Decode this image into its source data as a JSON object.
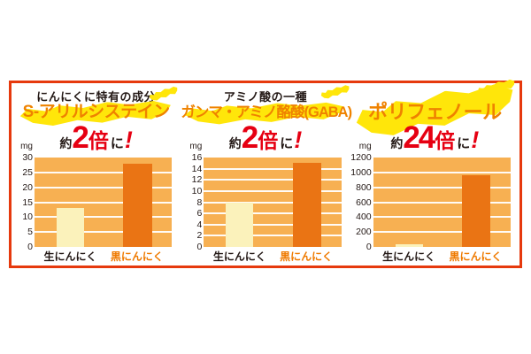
{
  "frame": {
    "border_color": "#e6390d",
    "background": "#ffffff"
  },
  "colors": {
    "plot_background": "#f7b052",
    "gridline": "#ffffff",
    "bar_raw_garlic": "#fbf2bb",
    "bar_black_garlic": "#ea7414",
    "title_orange": "#ef8200",
    "brush_yellow": "#ffe60a",
    "accent_red": "#e60012",
    "text_black": "#231815",
    "xlabel_orange": "#ef7a00"
  },
  "panels": [
    {
      "subtitle": "にんにくに特有の成分",
      "title": "S-アリルシステイン",
      "factor_prefix": "約",
      "factor_number": "2",
      "factor_counter": "倍",
      "factor_suffix": "に",
      "factor_bang": "!"
    },
    {
      "subtitle": "アミノ酸の一種",
      "title": "ガンマ・アミノ酪酸(GABA)",
      "factor_prefix": "約",
      "factor_number": "2",
      "factor_counter": "倍",
      "factor_suffix": "に",
      "factor_bang": "!"
    },
    {
      "subtitle": "",
      "title": "ポリフェノール",
      "factor_prefix": "約",
      "factor_number": "24",
      "factor_counter": "倍",
      "factor_suffix": "に",
      "factor_bang": "!"
    }
  ],
  "chart_data": [
    {
      "type": "bar",
      "title": "S-アリルシステイン",
      "annotation": "約2倍に!",
      "unit": "mg",
      "categories": [
        "生にんにく",
        "黒にんにく"
      ],
      "values": [
        13,
        28
      ],
      "ylim": [
        0,
        30
      ],
      "yticks": [
        0,
        5,
        10,
        15,
        20,
        25,
        30
      ],
      "grid": true,
      "legend": "none"
    },
    {
      "type": "bar",
      "title": "ガンマ・アミノ酪酸(GABA)",
      "annotation": "約2倍に!",
      "unit": "mg",
      "categories": [
        "生にんにく",
        "黒にんにく"
      ],
      "values": [
        8,
        15
      ],
      "ylim": [
        0,
        16
      ],
      "yticks": [
        0,
        2,
        4,
        6,
        8,
        10,
        12,
        14,
        16
      ],
      "grid": true,
      "legend": "none"
    },
    {
      "type": "bar",
      "title": "ポリフェノール",
      "annotation": "約24倍に!",
      "unit": "mg",
      "categories": [
        "生にんにく",
        "黒にんにく"
      ],
      "values": [
        40,
        960
      ],
      "ylim": [
        0,
        1200
      ],
      "yticks": [
        0,
        200,
        400,
        600,
        800,
        1000,
        1200
      ],
      "grid": true,
      "legend": "none"
    }
  ]
}
